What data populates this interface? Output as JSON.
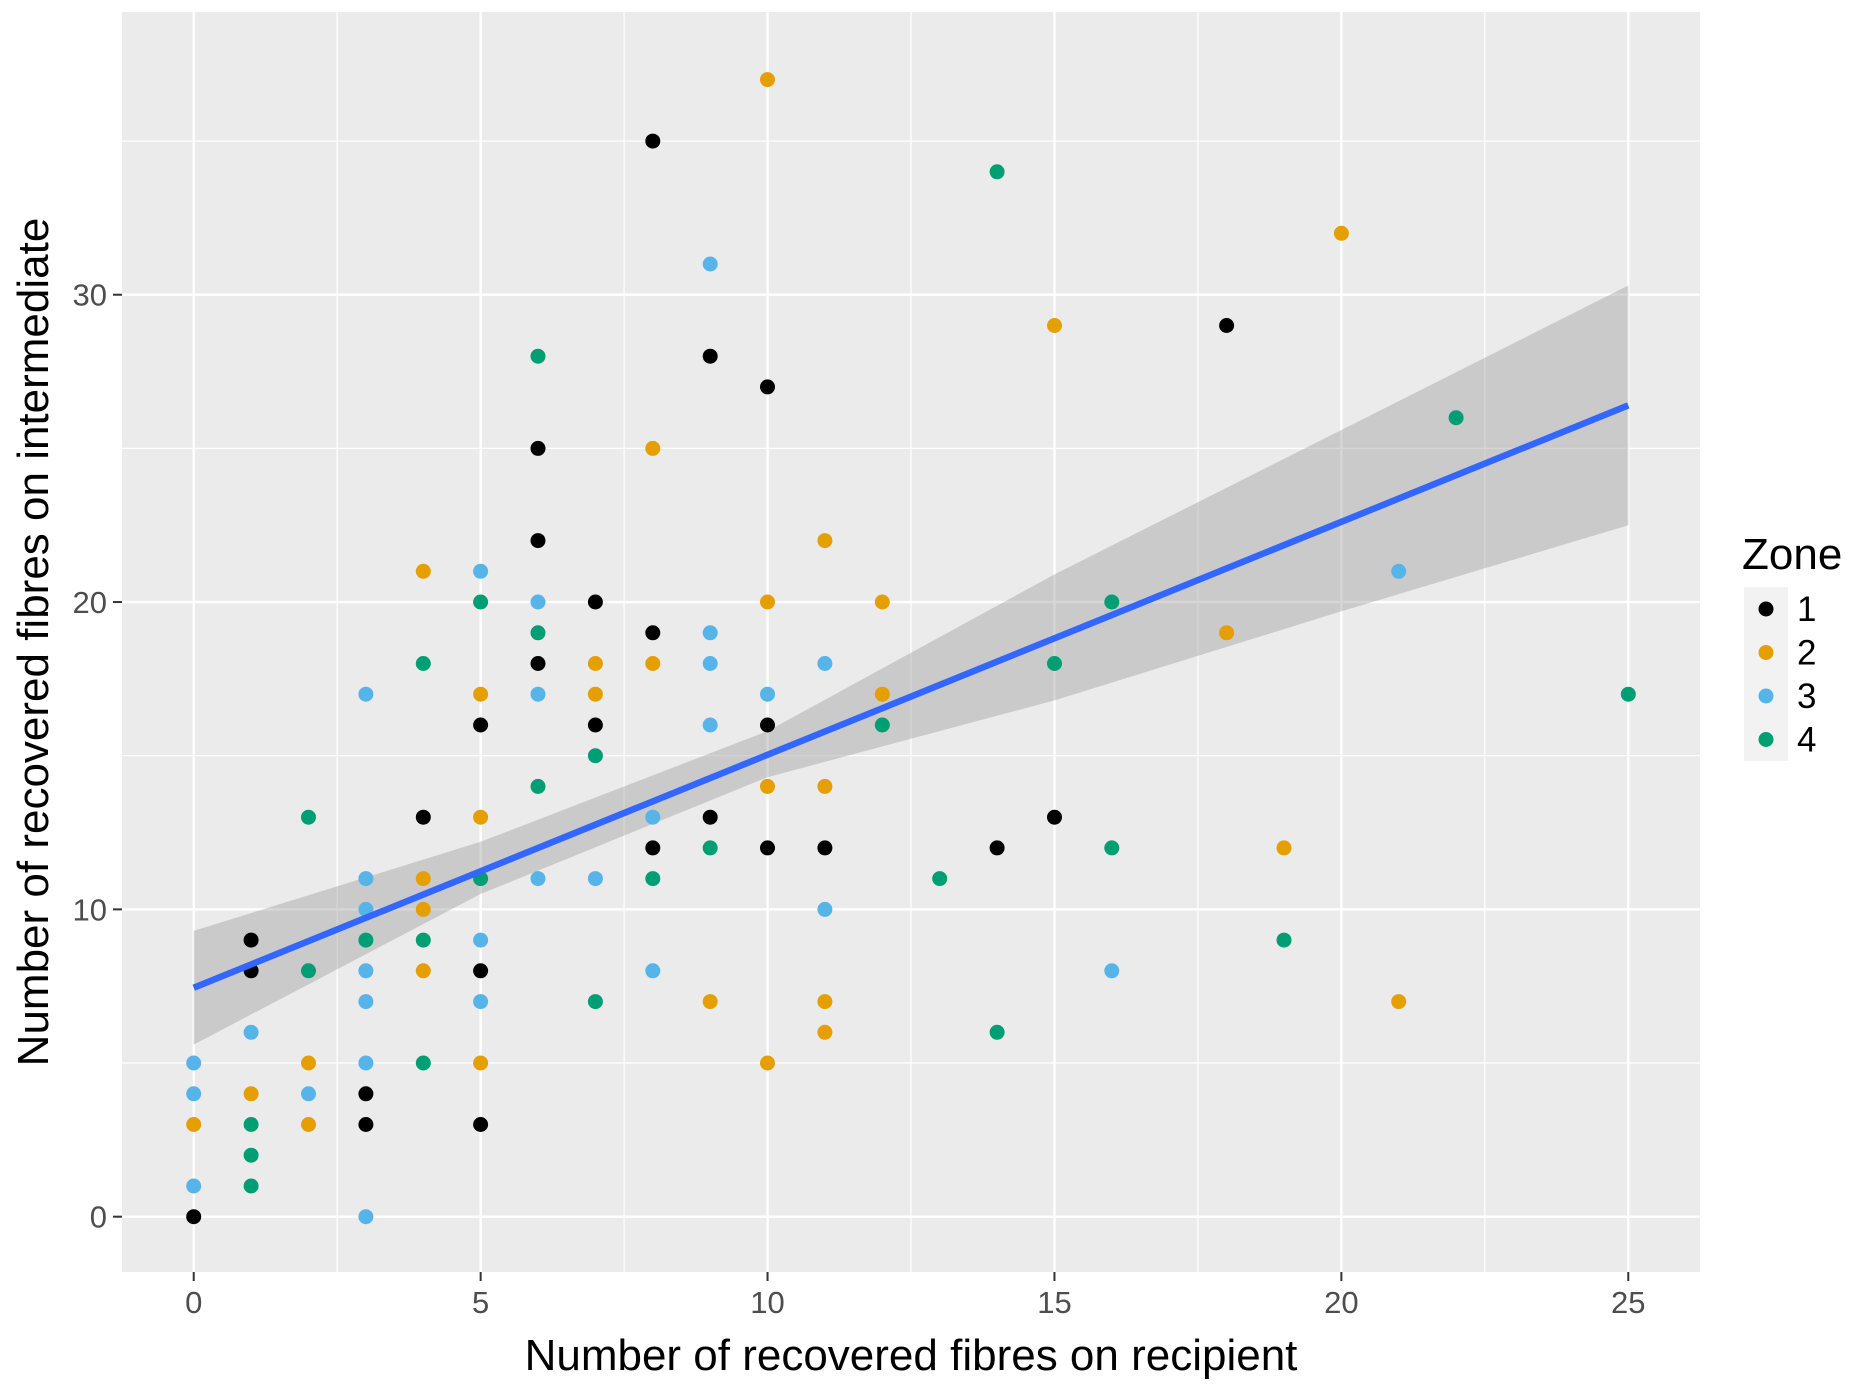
{
  "chart_data": {
    "type": "scatter",
    "xlabel": "Number of recovered fibres on recipient",
    "ylabel": "Number of recovered fibres on intermediate",
    "xlim": [
      -1.25,
      26.25
    ],
    "ylim": [
      -1.8,
      39.2
    ],
    "x_ticks": [
      0,
      5,
      10,
      15,
      20,
      25
    ],
    "y_ticks": [
      0,
      10,
      20,
      30
    ],
    "x_tick_labels": [
      "0",
      "5",
      "10",
      "15",
      "20",
      "25"
    ],
    "y_tick_labels": [
      "0",
      "10",
      "20",
      "30"
    ],
    "grid": true,
    "legend": {
      "title": "Zone",
      "placement": "right",
      "entries": [
        {
          "label": "1",
          "color": "#000000"
        },
        {
          "label": "2",
          "color": "#E69F00"
        },
        {
          "label": "3",
          "color": "#56B4E9"
        },
        {
          "label": "4",
          "color": "#009E73"
        }
      ]
    },
    "series": [
      {
        "name": "1",
        "color": "#000000",
        "points": [
          [
            0,
            0
          ],
          [
            1,
            9
          ],
          [
            1,
            8
          ],
          [
            3,
            4
          ],
          [
            3,
            3
          ],
          [
            4,
            13
          ],
          [
            5,
            16
          ],
          [
            5,
            8
          ],
          [
            5,
            3
          ],
          [
            6,
            25
          ],
          [
            6,
            22
          ],
          [
            6,
            18
          ],
          [
            7,
            20
          ],
          [
            7,
            16
          ],
          [
            8,
            35
          ],
          [
            8,
            19
          ],
          [
            8,
            12
          ],
          [
            9,
            28
          ],
          [
            9,
            13
          ],
          [
            10,
            27
          ],
          [
            10,
            16
          ],
          [
            10,
            12
          ],
          [
            11,
            12
          ],
          [
            14,
            12
          ],
          [
            15,
            13
          ],
          [
            18,
            29
          ]
        ]
      },
      {
        "name": "2",
        "color": "#E69F00",
        "points": [
          [
            0,
            3
          ],
          [
            1,
            4
          ],
          [
            2,
            5
          ],
          [
            2,
            3
          ],
          [
            4,
            21
          ],
          [
            4,
            11
          ],
          [
            4,
            10
          ],
          [
            4,
            8
          ],
          [
            5,
            17
          ],
          [
            5,
            13
          ],
          [
            5,
            5
          ],
          [
            7,
            18
          ],
          [
            7,
            17
          ],
          [
            8,
            25
          ],
          [
            8,
            18
          ],
          [
            9,
            7
          ],
          [
            10,
            37
          ],
          [
            10,
            20
          ],
          [
            10,
            14
          ],
          [
            10,
            5
          ],
          [
            11,
            22
          ],
          [
            11,
            14
          ],
          [
            11,
            7
          ],
          [
            11,
            6
          ],
          [
            12,
            20
          ],
          [
            12,
            17
          ],
          [
            15,
            29
          ],
          [
            18,
            19
          ],
          [
            19,
            12
          ],
          [
            20,
            32
          ],
          [
            21,
            7
          ]
        ]
      },
      {
        "name": "3",
        "color": "#56B4E9",
        "points": [
          [
            0,
            5
          ],
          [
            0,
            4
          ],
          [
            0,
            1
          ],
          [
            1,
            6
          ],
          [
            2,
            4
          ],
          [
            3,
            17
          ],
          [
            3,
            11
          ],
          [
            3,
            10
          ],
          [
            3,
            8
          ],
          [
            3,
            7
          ],
          [
            3,
            5
          ],
          [
            3,
            0
          ],
          [
            5,
            21
          ],
          [
            5,
            9
          ],
          [
            5,
            7
          ],
          [
            6,
            20
          ],
          [
            6,
            17
          ],
          [
            6,
            11
          ],
          [
            7,
            11
          ],
          [
            8,
            13
          ],
          [
            8,
            8
          ],
          [
            9,
            31
          ],
          [
            9,
            19
          ],
          [
            9,
            18
          ],
          [
            9,
            16
          ],
          [
            10,
            17
          ],
          [
            11,
            18
          ],
          [
            11,
            10
          ],
          [
            16,
            8
          ],
          [
            21,
            21
          ]
        ]
      },
      {
        "name": "4",
        "color": "#009E73",
        "points": [
          [
            1,
            3
          ],
          [
            1,
            2
          ],
          [
            1,
            1
          ],
          [
            2,
            13
          ],
          [
            2,
            8
          ],
          [
            3,
            9
          ],
          [
            4,
            18
          ],
          [
            4,
            9
          ],
          [
            4,
            5
          ],
          [
            5,
            20
          ],
          [
            5,
            11
          ],
          [
            6,
            28
          ],
          [
            6,
            19
          ],
          [
            6,
            14
          ],
          [
            7,
            15
          ],
          [
            7,
            7
          ],
          [
            8,
            11
          ],
          [
            9,
            12
          ],
          [
            12,
            16
          ],
          [
            13,
            11
          ],
          [
            14,
            34
          ],
          [
            14,
            6
          ],
          [
            15,
            18
          ],
          [
            16,
            20
          ],
          [
            16,
            12
          ],
          [
            19,
            9
          ],
          [
            22,
            26
          ],
          [
            25,
            17
          ]
        ]
      }
    ],
    "trend_line": {
      "color": "#3366FF",
      "points": [
        [
          0,
          7.45
        ],
        [
          25,
          26.4
        ]
      ]
    },
    "confidence_band": {
      "color": "#999999",
      "x": [
        0,
        5,
        10,
        15,
        20,
        25
      ],
      "lower": [
        5.6,
        10.5,
        14.3,
        16.8,
        19.7,
        22.5
      ],
      "upper": [
        9.3,
        12.2,
        15.8,
        20.9,
        25.6,
        30.3
      ]
    }
  }
}
